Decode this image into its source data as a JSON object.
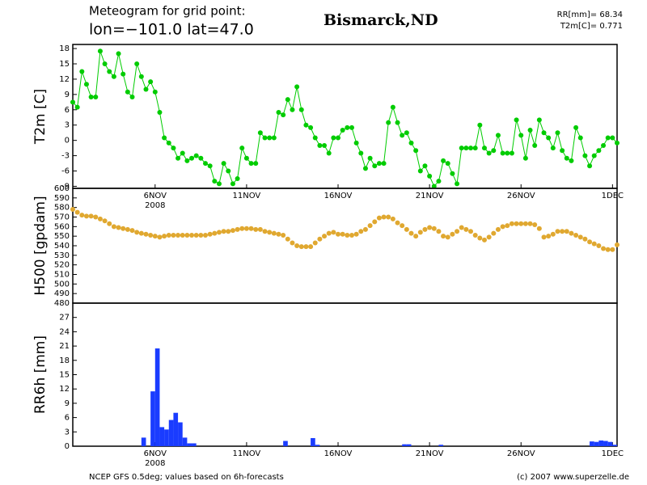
{
  "header": {
    "line1": "Meteogram for grid point:",
    "line2": "lon=−101.0  lat=47.0",
    "location": "Bismarck,ND",
    "stat1": "RR[mm]= 68.34",
    "stat2": "T2m[C]= 0.771"
  },
  "footer": {
    "left": "NCEP GFS 0.5deg; values based on 6h-forecasts",
    "right": "(c) 2007 www.superzelle.de"
  },
  "chart_data": [
    {
      "type": "line",
      "ylabel": "T2m [C]",
      "color": "#00cc00",
      "year_label": "2008",
      "xlim": [
        1.5,
        31.25
      ],
      "xticks": [
        {
          "value": 6,
          "label": "6NOV"
        },
        {
          "value": 11,
          "label": "11NOV"
        },
        {
          "value": 16,
          "label": "16NOV"
        },
        {
          "value": 21,
          "label": "21NOV"
        },
        {
          "value": 26,
          "label": "26NOV"
        },
        {
          "value": 31,
          "label": "1DEC"
        }
      ],
      "ylim": [
        -9.4,
        18.8
      ],
      "yticks": [
        -9,
        -6,
        -3,
        0,
        3,
        6,
        9,
        12,
        15,
        18
      ],
      "x": [
        1.5,
        1.75,
        2,
        2.25,
        2.5,
        2.75,
        3,
        3.25,
        3.5,
        3.75,
        4,
        4.25,
        4.5,
        4.75,
        5,
        5.25,
        5.5,
        5.75,
        6,
        6.25,
        6.5,
        6.75,
        7,
        7.25,
        7.5,
        7.75,
        8,
        8.25,
        8.5,
        8.75,
        9,
        9.25,
        9.5,
        9.75,
        10,
        10.25,
        10.5,
        10.75,
        11,
        11.25,
        11.5,
        11.75,
        12,
        12.25,
        12.5,
        12.75,
        13,
        13.25,
        13.5,
        13.75,
        14,
        14.25,
        14.5,
        14.75,
        15,
        15.25,
        15.5,
        15.75,
        16,
        16.25,
        16.5,
        16.75,
        17,
        17.25,
        17.5,
        17.75,
        18,
        18.25,
        18.5,
        18.75,
        19,
        19.25,
        19.5,
        19.75,
        20,
        20.25,
        20.5,
        20.75,
        21,
        21.25,
        21.5,
        21.75,
        22,
        22.25,
        22.5,
        22.75,
        23,
        23.25,
        23.5,
        23.75,
        24,
        24.25,
        24.5,
        24.75,
        25,
        25.25,
        25.5,
        25.75,
        26,
        26.25,
        26.5,
        26.75,
        27,
        27.25,
        27.5,
        27.75,
        28,
        28.25,
        28.5,
        28.75,
        29,
        29.25,
        29.5,
        29.75,
        30,
        30.25,
        30.5,
        30.75,
        31,
        31.25
      ],
      "values": [
        7.5,
        6.5,
        13.5,
        11,
        8.5,
        8.5,
        17.5,
        15,
        13.5,
        12.5,
        17,
        13,
        9.5,
        8.5,
        15,
        12.5,
        10,
        11.5,
        9.5,
        5.5,
        0.5,
        -0.5,
        -1.5,
        -3.5,
        -2.5,
        -4,
        -3.5,
        -3,
        -3.5,
        -4.5,
        -5,
        -8,
        -8.5,
        -4.5,
        -6,
        -8.5,
        -7.5,
        -1.5,
        -3.5,
        -4.5,
        -4.5,
        1.5,
        0.5,
        0.5,
        0.5,
        5.5,
        5,
        8,
        6,
        10.5,
        6,
        3,
        2.5,
        0.5,
        -1,
        -1,
        -2.5,
        0.5,
        0.5,
        2,
        2.5,
        2.5,
        -0.5,
        -2.5,
        -5.5,
        -3.5,
        -5,
        -4.5,
        -4.5,
        3.5,
        6.5,
        3.5,
        1,
        1.5,
        -0.5,
        -2,
        -6,
        -5,
        -7,
        -9,
        -8,
        -4,
        -4.5,
        -6.5,
        -8.5,
        -1.5,
        -1.5,
        -1.5,
        -1.5,
        3,
        -1.5,
        -2.5,
        -2,
        1,
        -2.5,
        -2.5,
        -2.5,
        4,
        1,
        -3.5,
        2,
        -1,
        4,
        1.5,
        0.5,
        -1.5,
        1.5,
        -2,
        -3.5,
        -4,
        2.5,
        0.5,
        -3,
        -5,
        -3,
        -2,
        -1,
        0.5,
        0.5,
        -0.5
      ]
    },
    {
      "type": "scatter",
      "ylabel": "H500 [gpdam]",
      "color": "#e0a830",
      "xlim": [
        1.5,
        31.25
      ],
      "ylim": [
        480,
        600
      ],
      "yticks": [
        480,
        490,
        500,
        510,
        520,
        530,
        540,
        550,
        560,
        570,
        580,
        590,
        600
      ],
      "x": [
        1.5,
        1.75,
        2,
        2.25,
        2.5,
        2.75,
        3,
        3.25,
        3.5,
        3.75,
        4,
        4.25,
        4.5,
        4.75,
        5,
        5.25,
        5.5,
        5.75,
        6,
        6.25,
        6.5,
        6.75,
        7,
        7.25,
        7.5,
        7.75,
        8,
        8.25,
        8.5,
        8.75,
        9,
        9.25,
        9.5,
        9.75,
        10,
        10.25,
        10.5,
        10.75,
        11,
        11.25,
        11.5,
        11.75,
        12,
        12.25,
        12.5,
        12.75,
        13,
        13.25,
        13.5,
        13.75,
        14,
        14.25,
        14.5,
        14.75,
        15,
        15.25,
        15.5,
        15.75,
        16,
        16.25,
        16.5,
        16.75,
        17,
        17.25,
        17.5,
        17.75,
        18,
        18.25,
        18.5,
        18.75,
        19,
        19.25,
        19.5,
        19.75,
        20,
        20.25,
        20.5,
        20.75,
        21,
        21.25,
        21.5,
        21.75,
        22,
        22.25,
        22.5,
        22.75,
        23,
        23.25,
        23.5,
        23.75,
        24,
        24.25,
        24.5,
        24.75,
        25,
        25.25,
        25.5,
        25.75,
        26,
        26.25,
        26.5,
        26.75,
        27,
        27.25,
        27.5,
        27.75,
        28,
        28.25,
        28.5,
        28.75,
        29,
        29.25,
        29.5,
        29.75,
        30,
        30.25,
        30.5,
        30.75,
        31,
        31.25
      ],
      "values": [
        578,
        575,
        572,
        571,
        571,
        570,
        568,
        566,
        563,
        560,
        559,
        558,
        557,
        556,
        554,
        553,
        552,
        551,
        550,
        549,
        550,
        551,
        551,
        551,
        551,
        551,
        551,
        551,
        551,
        551,
        552,
        553,
        554,
        555,
        555,
        556,
        557,
        558,
        558,
        558,
        557,
        557,
        555,
        554,
        553,
        552,
        551,
        547,
        543,
        540,
        539,
        539,
        539,
        543,
        547,
        550,
        553,
        554,
        552,
        552,
        551,
        551,
        552,
        555,
        557,
        561,
        565,
        569,
        570,
        570,
        568,
        564,
        561,
        557,
        553,
        550,
        554,
        557,
        559,
        558,
        555,
        550,
        549,
        552,
        555,
        559,
        557,
        555,
        551,
        548,
        546,
        549,
        553,
        557,
        560,
        561,
        563,
        563,
        563,
        563,
        563,
        562,
        558,
        549,
        550,
        552,
        555,
        555,
        555,
        553,
        551,
        549,
        547,
        544,
        542,
        540,
        537,
        536,
        536,
        541
      ]
    },
    {
      "type": "bar",
      "ylabel": "RR6h [mm]",
      "color": "#1a3cff",
      "year_label": "2008",
      "xlim": [
        1.5,
        31.25
      ],
      "xticks": [
        {
          "value": 6,
          "label": "6NOV"
        },
        {
          "value": 11,
          "label": "11NOV"
        },
        {
          "value": 16,
          "label": "16NOV"
        },
        {
          "value": 21,
          "label": "21NOV"
        },
        {
          "value": 26,
          "label": "26NOV"
        },
        {
          "value": 31,
          "label": "1DEC"
        }
      ],
      "ylim": [
        0,
        30
      ],
      "yticks": [
        0,
        3,
        6,
        9,
        12,
        15,
        18,
        21,
        24,
        27
      ],
      "x": [
        5.5,
        6,
        6.25,
        6.5,
        6.75,
        7,
        7.25,
        7.5,
        7.75,
        8,
        8.25,
        13.25,
        14.75,
        15,
        19.75,
        20,
        21.75,
        30,
        30.25,
        30.5,
        30.75,
        31,
        31.25
      ],
      "values": [
        1.8,
        11.5,
        20.5,
        4,
        3.5,
        5.5,
        7,
        5,
        1.8,
        0.6,
        0.6,
        1.1,
        1.7,
        0.3,
        0.4,
        0.4,
        0.3,
        1,
        0.9,
        1.2,
        1.1,
        0.9,
        0.3
      ]
    }
  ]
}
